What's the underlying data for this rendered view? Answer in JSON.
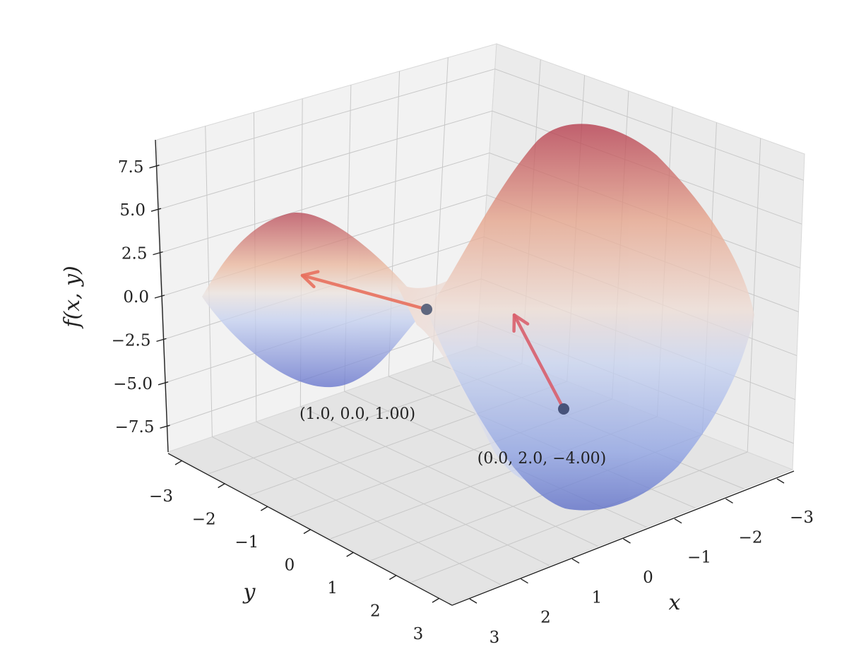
{
  "chart_data": {
    "type": "surface",
    "surface": {
      "x_range": [
        -3,
        3
      ],
      "y_range": [
        -3,
        3
      ],
      "colormap": "coolwarm",
      "alpha": 0.6
    },
    "axes": {
      "xlabel": "x",
      "ylabel": "y",
      "zlabel": "f(x, y)",
      "xlim": [
        -3,
        3
      ],
      "ylim": [
        -3,
        3
      ],
      "zlim": [
        -9,
        9
      ],
      "x_ticks": [
        "−3",
        "−2",
        "−1",
        "0",
        "1",
        "2",
        "3"
      ],
      "y_ticks": [
        "−3",
        "−2",
        "−1",
        "0",
        "1",
        "2",
        "3"
      ],
      "z_ticks": [
        "7.5",
        "5.0",
        "2.5",
        "0.0",
        "−2.5",
        "−5.0",
        "−7.5"
      ],
      "grid": true
    },
    "points": [
      {
        "x": 1.0,
        "y": 0.0,
        "z": 1.0,
        "label": "(1.0, 0.0, 1.00)"
      },
      {
        "x": 0.0,
        "y": 2.0,
        "z": -4.0,
        "label": "(0.0, 2.0, −4.00)"
      }
    ],
    "arrows": [
      {
        "from_point": 0,
        "color": "#e8705e"
      },
      {
        "from_point": 1,
        "color": "#d9606d"
      }
    ],
    "colors": {
      "point": "#55607a",
      "pane": "#f2f2f2",
      "grid": "#c8c8c8"
    }
  }
}
